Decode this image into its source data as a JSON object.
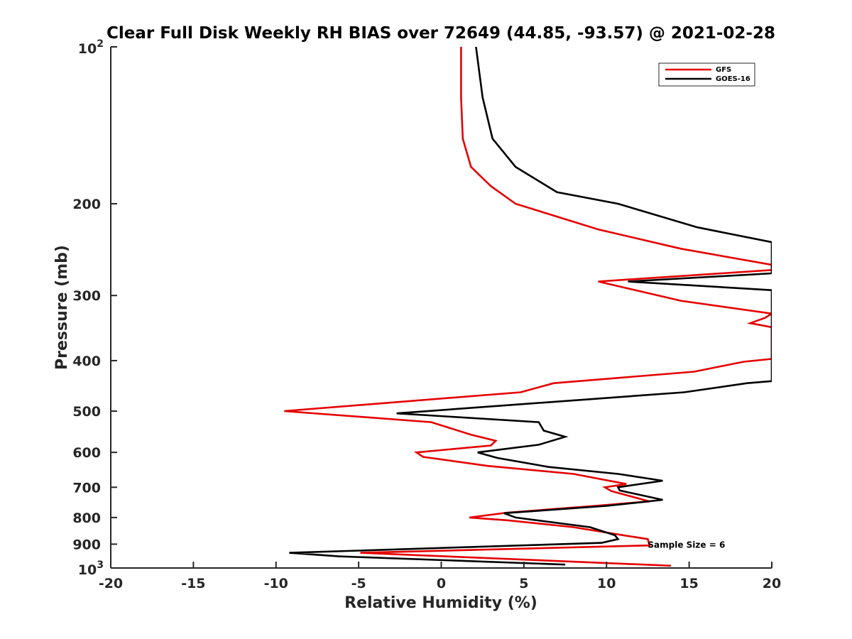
{
  "chart_data": {
    "type": "line",
    "title": "Clear Full Disk Weekly RH BIAS over 72649 (44.85, -93.57) @ 2021-02-28",
    "xlabel": "Relative Humidity (%)",
    "ylabel": "Pressure (mb)",
    "xlim": [
      -20,
      20
    ],
    "ylim": [
      100,
      1000
    ],
    "y_scale": "log",
    "y_reversed": true,
    "grid": false,
    "legend_position": "top-right",
    "x_ticks": [
      {
        "value": -20,
        "label": "-20"
      },
      {
        "value": -15,
        "label": "-15"
      },
      {
        "value": -10,
        "label": "-10"
      },
      {
        "value": -5,
        "label": "-5"
      },
      {
        "value": 0,
        "label": "0"
      },
      {
        "value": 5,
        "label": "5"
      },
      {
        "value": 10,
        "label": "10"
      },
      {
        "value": 15,
        "label": "15"
      },
      {
        "value": 20,
        "label": "20"
      }
    ],
    "y_ticks": [
      {
        "value": 100,
        "label": "10",
        "sup": "2"
      },
      {
        "value": 200,
        "label": "200"
      },
      {
        "value": 300,
        "label": "300"
      },
      {
        "value": 400,
        "label": "400"
      },
      {
        "value": 500,
        "label": "500"
      },
      {
        "value": 600,
        "label": "600"
      },
      {
        "value": 700,
        "label": "700"
      },
      {
        "value": 800,
        "label": "800"
      },
      {
        "value": 900,
        "label": "900"
      },
      {
        "value": 1000,
        "label": "10",
        "sup": "3"
      }
    ],
    "annotation": {
      "text": "Sample Size = 6",
      "x": 12.5,
      "y": 900
    },
    "series": [
      {
        "name": "GFS",
        "color": "#e50000",
        "points": [
          [
            1.2,
            100
          ],
          [
            1.2,
            125
          ],
          [
            1.3,
            150
          ],
          [
            1.8,
            170
          ],
          [
            3.0,
            185
          ],
          [
            4.5,
            200
          ],
          [
            9.5,
            224
          ],
          [
            14.5,
            244
          ],
          [
            20,
            262
          ],
          [
            20,
            268
          ],
          [
            9.5,
            282
          ],
          [
            14.5,
            307
          ],
          [
            20,
            325
          ],
          [
            19.6,
            331
          ],
          [
            18.7,
            339
          ],
          [
            20,
            345
          ],
          [
            20,
            348
          ],
          [
            20,
            397
          ],
          [
            18.3,
            402
          ],
          [
            15.3,
            420
          ],
          [
            6.8,
            442
          ],
          [
            4.8,
            460
          ],
          [
            -9.5,
            500
          ],
          [
            -0.6,
            525
          ],
          [
            1.8,
            555
          ],
          [
            3.3,
            570
          ],
          [
            3.0,
            582
          ],
          [
            -1.5,
            600
          ],
          [
            -1.1,
            612
          ],
          [
            2.8,
            637
          ],
          [
            8.0,
            660
          ],
          [
            11.2,
            690
          ],
          [
            9.9,
            700
          ],
          [
            10.3,
            712
          ],
          [
            12.6,
            745
          ],
          [
            9.3,
            760
          ],
          [
            4.0,
            783
          ],
          [
            1.7,
            800
          ],
          [
            4.0,
            810
          ],
          [
            8.0,
            835
          ],
          [
            11.0,
            865
          ],
          [
            12.5,
            880
          ],
          [
            12.6,
            905
          ],
          [
            -4.9,
            935
          ],
          [
            13.9,
            990
          ]
        ]
      },
      {
        "name": "GOES-16",
        "color": "#000000",
        "points": [
          [
            2.1,
            100
          ],
          [
            2.5,
            125
          ],
          [
            3.1,
            150
          ],
          [
            4.5,
            170
          ],
          [
            7.0,
            190
          ],
          [
            10.7,
            200
          ],
          [
            15.5,
            222
          ],
          [
            20,
            237
          ],
          [
            20,
            272
          ],
          [
            11.3,
            282
          ],
          [
            20,
            293
          ],
          [
            20,
            438
          ],
          [
            18.5,
            442
          ],
          [
            14.7,
            460
          ],
          [
            -2.7,
            505
          ],
          [
            5.9,
            525
          ],
          [
            6.2,
            545
          ],
          [
            7.5,
            560
          ],
          [
            5.9,
            580
          ],
          [
            2.2,
            600
          ],
          [
            3.4,
            615
          ],
          [
            6.5,
            640
          ],
          [
            10.7,
            660
          ],
          [
            13.4,
            680
          ],
          [
            10.7,
            700
          ],
          [
            10.8,
            710
          ],
          [
            13.4,
            740
          ],
          [
            10.0,
            760
          ],
          [
            3.8,
            785
          ],
          [
            4.5,
            800
          ],
          [
            9.0,
            835
          ],
          [
            10.5,
            865
          ],
          [
            10.7,
            880
          ],
          [
            9.7,
            895
          ],
          [
            -9.2,
            935
          ],
          [
            -6.2,
            950
          ],
          [
            7.5,
            985
          ]
        ]
      }
    ]
  }
}
